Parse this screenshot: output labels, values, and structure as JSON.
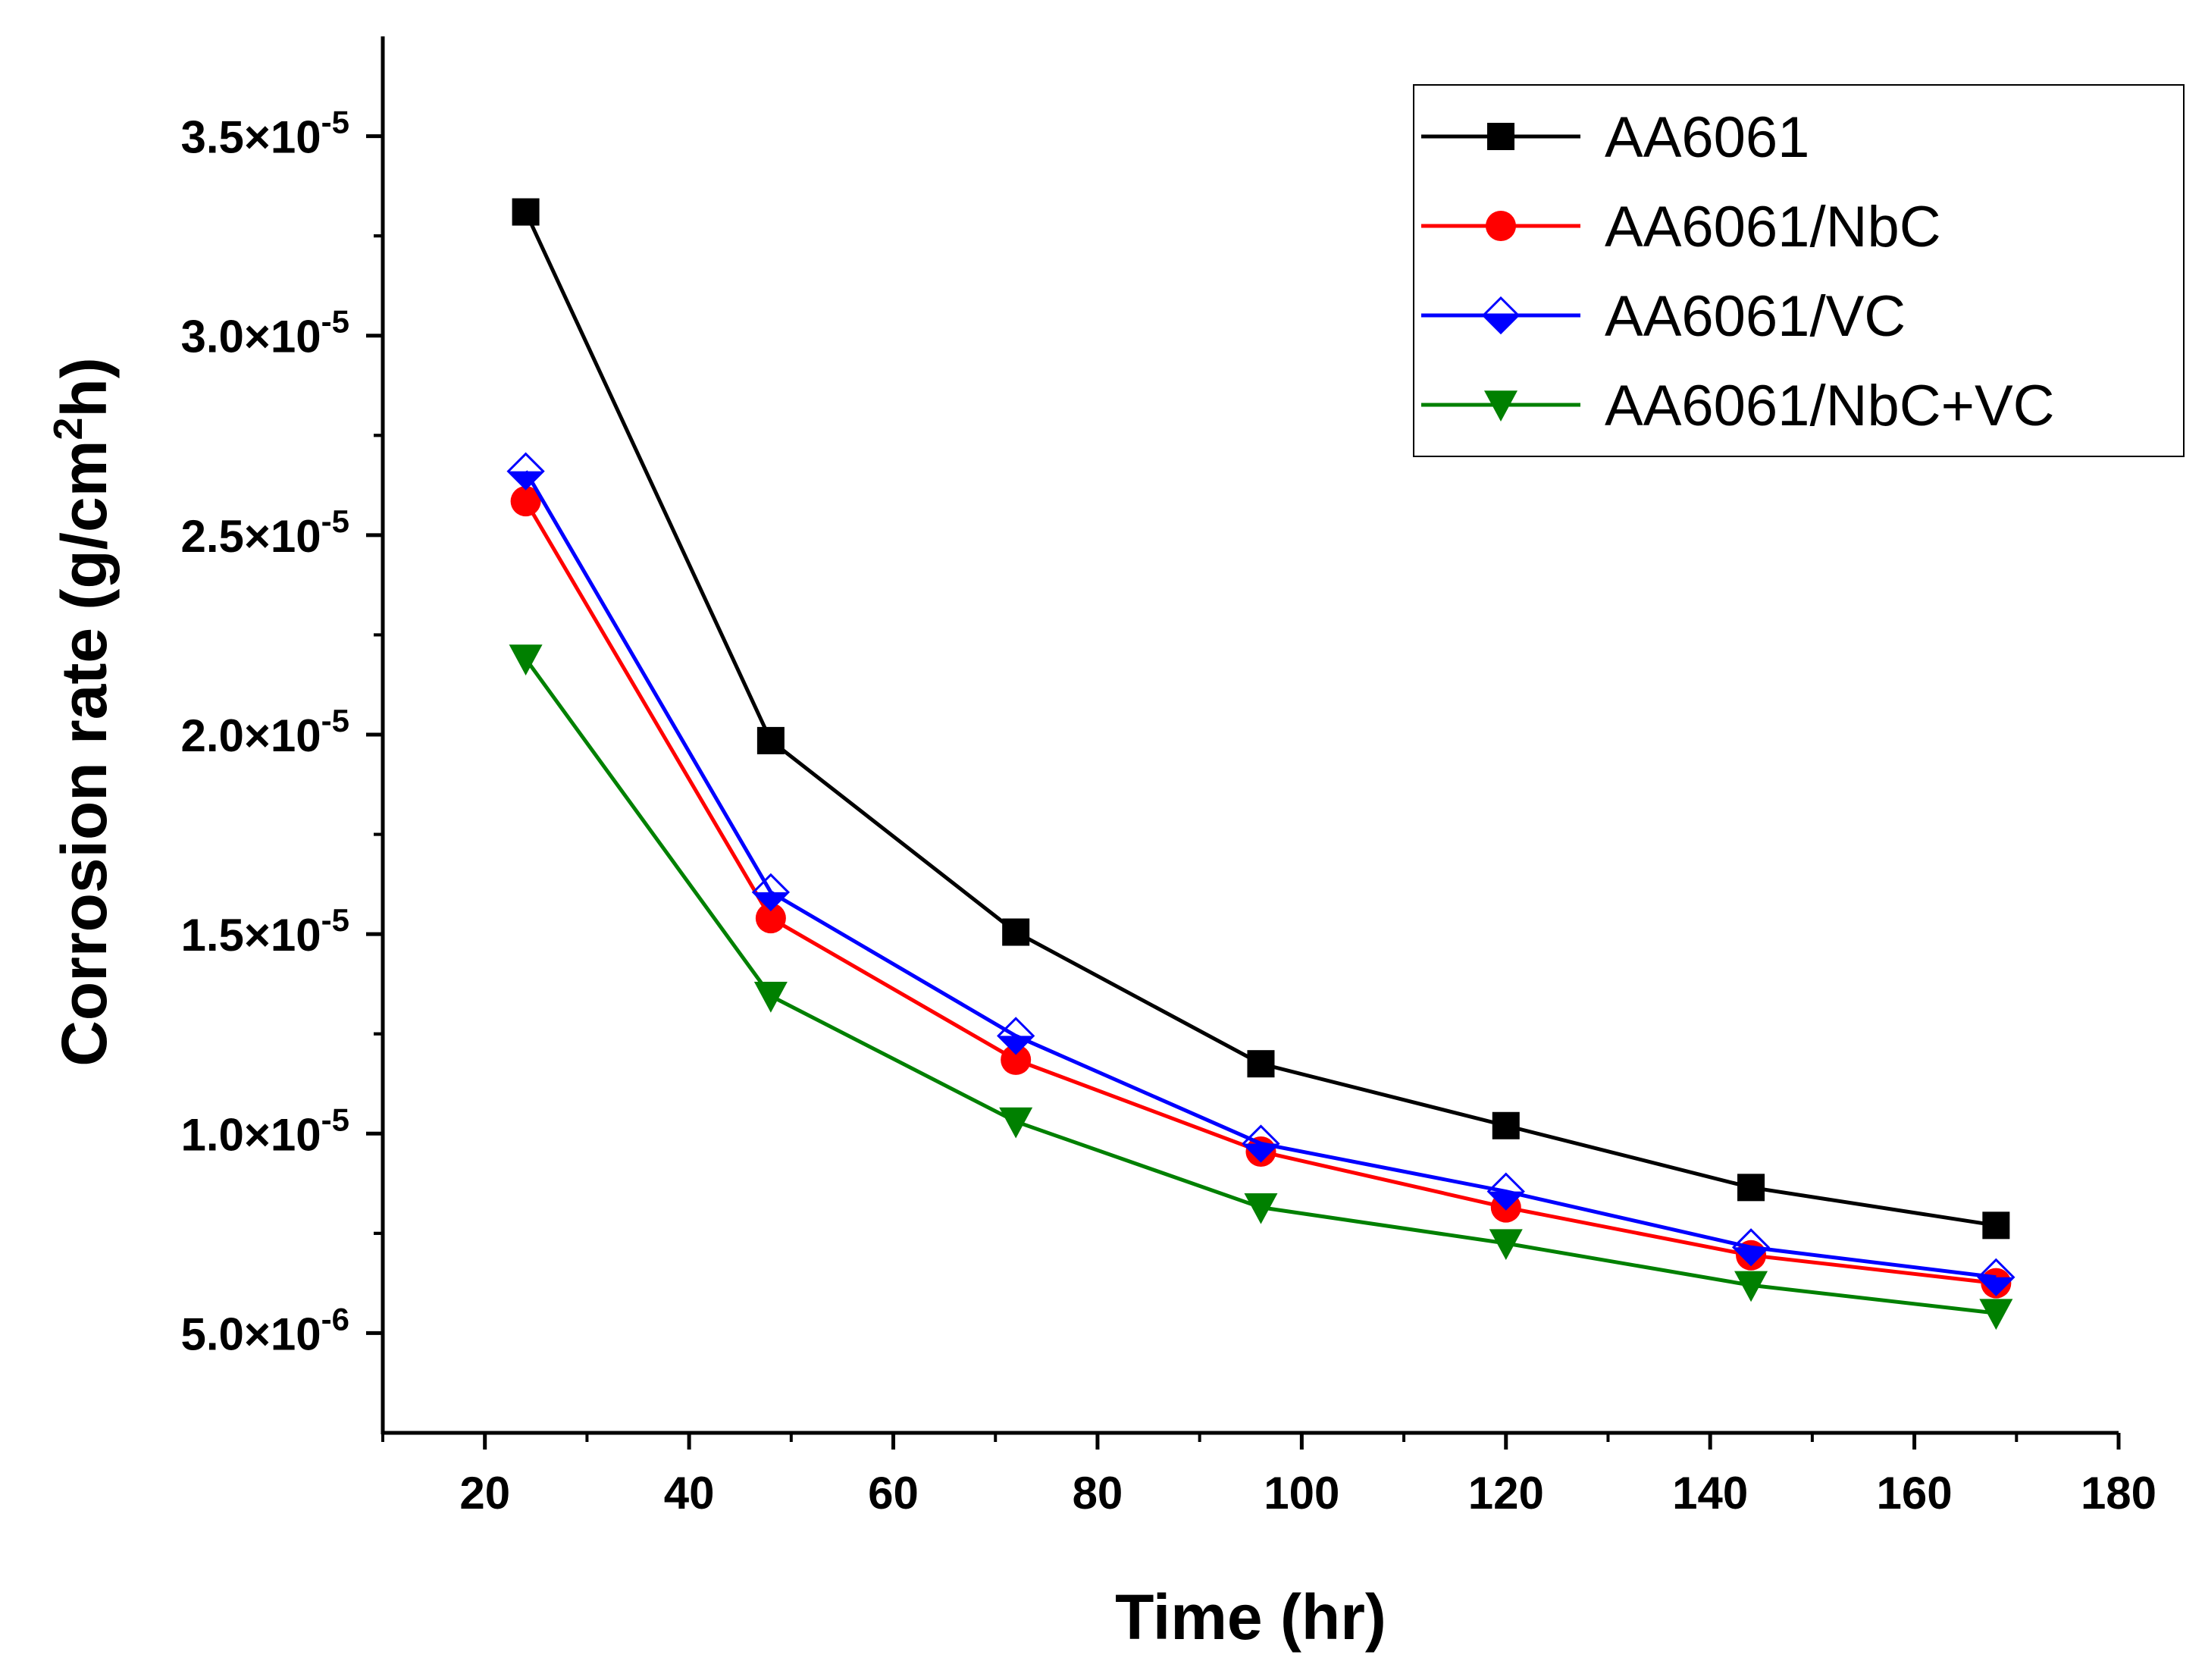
{
  "chart_data": {
    "type": "line",
    "title": "",
    "xlabel": "Time (hr)",
    "ylabel": "Corrosion rate (g/cm",
    "ylabel_sup": "2",
    "ylabel_tail": "h)",
    "x": [
      24,
      48,
      72,
      96,
      120,
      144,
      168
    ],
    "xlim": [
      10,
      180
    ],
    "ylim": [
      2.5e-06,
      3.75e-05
    ],
    "x_ticks": [
      20,
      40,
      60,
      80,
      100,
      120,
      140,
      160,
      180
    ],
    "y_ticks": [
      {
        "value": 5e-06,
        "mantissa": "5.0",
        "times": "×10",
        "exp": "-6"
      },
      {
        "value": 1e-05,
        "mantissa": "1.0",
        "times": "×10",
        "exp": "-5"
      },
      {
        "value": 1.5e-05,
        "mantissa": "1.5",
        "times": "×10",
        "exp": "-5"
      },
      {
        "value": 2e-05,
        "mantissa": "2.0",
        "times": "×10",
        "exp": "-5"
      },
      {
        "value": 2.5e-05,
        "mantissa": "2.5",
        "times": "×10",
        "exp": "-5"
      },
      {
        "value": 3e-05,
        "mantissa": "3.0",
        "times": "×10",
        "exp": "-5"
      },
      {
        "value": 3.5e-05,
        "mantissa": "3.5",
        "times": "×10",
        "exp": "-5"
      }
    ],
    "grid": false,
    "legend_position": "top-right",
    "series": [
      {
        "name": "AA6061",
        "color": "#000000",
        "marker": "square",
        "values": [
          3.31e-05,
          1.985e-05,
          1.505e-05,
          1.175e-05,
          1.02e-05,
          8.65e-06,
          7.7e-06
        ]
      },
      {
        "name": "AA6061/NbC",
        "color": "#ff0000",
        "marker": "circle",
        "values": [
          2.585e-05,
          1.54e-05,
          1.185e-05,
          9.55e-06,
          8.15e-06,
          6.95e-06,
          6.25e-06
        ]
      },
      {
        "name": "AA6061/VC",
        "color": "#0000ff",
        "marker": "half-diamond",
        "values": [
          2.66e-05,
          1.605e-05,
          1.245e-05,
          9.75e-06,
          8.55e-06,
          7.15e-06,
          6.4e-06
        ]
      },
      {
        "name": "AA6061/NbC+VC",
        "color": "#008000",
        "marker": "triangle-down",
        "values": [
          2.19e-05,
          1.345e-05,
          1.03e-05,
          8.15e-06,
          7.25e-06,
          6.2e-06,
          5.5e-06
        ]
      }
    ]
  }
}
